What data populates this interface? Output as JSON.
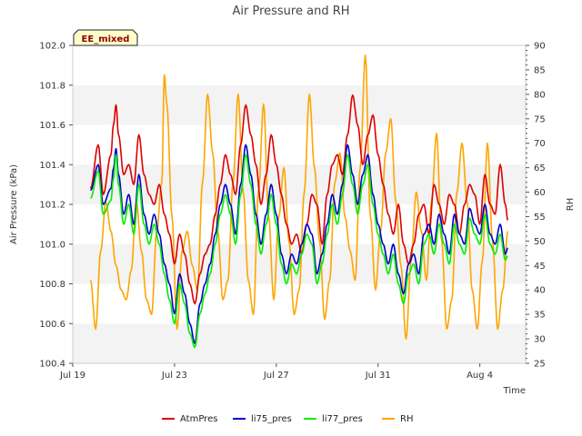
{
  "chart_data": {
    "type": "line",
    "title": "Air Pressure and RH",
    "xlabel": "Time",
    "ylabel": "Air Pressure (kPa)",
    "y2label": "RH",
    "badge": "EE_mixed",
    "xlim": [
      0,
      17.8
    ],
    "ylim": [
      100.4,
      102.0
    ],
    "y2lim": [
      25,
      90
    ],
    "x_ticks": [
      {
        "value": 0,
        "label": "Jul 19"
      },
      {
        "value": 4,
        "label": "Jul 23"
      },
      {
        "value": 8,
        "label": "Jul 27"
      },
      {
        "value": 12,
        "label": "Jul 31"
      },
      {
        "value": 16,
        "label": "Aug 4"
      }
    ],
    "y_ticks": [
      "100.4",
      "100.6",
      "100.8",
      "101.0",
      "101.2",
      "101.4",
      "101.6",
      "101.8",
      "102.0"
    ],
    "y2_ticks": [
      "25",
      "30",
      "35",
      "40",
      "45",
      "50",
      "55",
      "60",
      "65",
      "70",
      "75",
      "80",
      "85",
      "90"
    ],
    "legend_position": "bottom",
    "series": [
      {
        "name": "AtmPres",
        "color": "#dd0000",
        "axis": "left",
        "x": [
          0.7,
          1.0,
          1.2,
          1.5,
          1.6,
          1.7,
          1.8,
          2.0,
          2.2,
          2.4,
          2.6,
          2.8,
          3.0,
          3.2,
          3.4,
          3.6,
          3.8,
          4.0,
          4.2,
          4.4,
          4.6,
          4.8,
          5.0,
          5.2,
          5.4,
          5.6,
          5.8,
          6.0,
          6.2,
          6.4,
          6.6,
          6.8,
          7.0,
          7.2,
          7.4,
          7.6,
          7.8,
          8.0,
          8.2,
          8.4,
          8.6,
          8.8,
          9.0,
          9.2,
          9.4,
          9.6,
          9.8,
          10.0,
          10.2,
          10.4,
          10.6,
          10.8,
          11.0,
          11.2,
          11.4,
          11.6,
          11.8,
          12.0,
          12.2,
          12.4,
          12.6,
          12.8,
          13.0,
          13.2,
          13.4,
          13.6,
          13.8,
          14.0,
          14.2,
          14.4,
          14.6,
          14.8,
          15.0,
          15.2,
          15.4,
          15.6,
          15.8,
          16.0,
          16.2,
          16.4,
          16.6,
          16.8,
          17.0,
          17.1
        ],
        "y": [
          101.28,
          101.5,
          101.25,
          101.45,
          101.6,
          101.7,
          101.55,
          101.35,
          101.4,
          101.3,
          101.55,
          101.35,
          101.25,
          101.2,
          101.3,
          101.15,
          101.05,
          100.9,
          101.05,
          100.95,
          100.8,
          100.7,
          100.85,
          100.95,
          101.0,
          101.15,
          101.3,
          101.45,
          101.35,
          101.25,
          101.5,
          101.7,
          101.55,
          101.4,
          101.2,
          101.35,
          101.55,
          101.4,
          101.25,
          101.1,
          101.0,
          101.05,
          100.95,
          101.1,
          101.25,
          101.2,
          101.0,
          101.25,
          101.4,
          101.45,
          101.35,
          101.55,
          101.75,
          101.6,
          101.4,
          101.55,
          101.65,
          101.45,
          101.3,
          101.15,
          101.05,
          101.2,
          101.0,
          100.9,
          101.0,
          101.15,
          101.2,
          101.05,
          101.3,
          101.2,
          101.1,
          101.25,
          101.2,
          101.05,
          101.2,
          101.3,
          101.25,
          101.1,
          101.35,
          101.2,
          101.15,
          101.4,
          101.2,
          101.12
        ]
      },
      {
        "name": "li75_pres",
        "color": "#0000cc",
        "axis": "left",
        "x": [
          0.7,
          1.0,
          1.2,
          1.5,
          1.6,
          1.7,
          1.8,
          2.0,
          2.2,
          2.4,
          2.6,
          2.8,
          3.0,
          3.2,
          3.4,
          3.6,
          3.8,
          4.0,
          4.2,
          4.4,
          4.6,
          4.8,
          5.0,
          5.2,
          5.4,
          5.6,
          5.8,
          6.0,
          6.2,
          6.4,
          6.6,
          6.8,
          7.0,
          7.2,
          7.4,
          7.6,
          7.8,
          8.0,
          8.2,
          8.4,
          8.6,
          8.8,
          9.0,
          9.2,
          9.4,
          9.6,
          9.8,
          10.0,
          10.2,
          10.4,
          10.6,
          10.8,
          11.0,
          11.2,
          11.4,
          11.6,
          11.8,
          12.0,
          12.2,
          12.4,
          12.6,
          12.8,
          13.0,
          13.2,
          13.4,
          13.6,
          13.8,
          14.0,
          14.2,
          14.4,
          14.6,
          14.8,
          15.0,
          15.2,
          15.4,
          15.6,
          15.8,
          16.0,
          16.2,
          16.4,
          16.6,
          16.8,
          17.0,
          17.1
        ],
        "y": [
          101.27,
          101.4,
          101.2,
          101.28,
          101.38,
          101.48,
          101.35,
          101.15,
          101.25,
          101.1,
          101.35,
          101.15,
          101.05,
          101.15,
          101.05,
          100.9,
          100.8,
          100.65,
          100.85,
          100.75,
          100.6,
          100.5,
          100.7,
          100.8,
          100.9,
          101.05,
          101.2,
          101.3,
          101.2,
          101.05,
          101.3,
          101.5,
          101.35,
          101.15,
          101.0,
          101.15,
          101.3,
          101.15,
          100.95,
          100.85,
          100.95,
          100.9,
          101.0,
          101.1,
          101.05,
          100.85,
          100.95,
          101.1,
          101.25,
          101.15,
          101.3,
          101.5,
          101.35,
          101.2,
          101.35,
          101.45,
          101.25,
          101.1,
          101.0,
          100.9,
          101.0,
          100.85,
          100.75,
          100.9,
          100.95,
          100.85,
          101.05,
          101.1,
          101.0,
          101.15,
          101.05,
          100.95,
          101.15,
          101.05,
          101.0,
          101.18,
          101.1,
          101.05,
          101.2,
          101.05,
          101.0,
          101.1,
          100.95,
          100.98
        ]
      },
      {
        "name": "li77_pres",
        "color": "#00ee00",
        "axis": "left",
        "x": [
          0.7,
          1.0,
          1.2,
          1.5,
          1.6,
          1.7,
          1.8,
          2.0,
          2.2,
          2.4,
          2.6,
          2.8,
          3.0,
          3.2,
          3.4,
          3.6,
          3.8,
          4.0,
          4.2,
          4.4,
          4.6,
          4.8,
          5.0,
          5.2,
          5.4,
          5.6,
          5.8,
          6.0,
          6.2,
          6.4,
          6.6,
          6.8,
          7.0,
          7.2,
          7.4,
          7.6,
          7.8,
          8.0,
          8.2,
          8.4,
          8.6,
          8.8,
          9.0,
          9.2,
          9.4,
          9.6,
          9.8,
          10.0,
          10.2,
          10.4,
          10.6,
          10.8,
          11.0,
          11.2,
          11.4,
          11.6,
          11.8,
          12.0,
          12.2,
          12.4,
          12.6,
          12.8,
          13.0,
          13.2,
          13.4,
          13.6,
          13.8,
          14.0,
          14.2,
          14.4,
          14.6,
          14.8,
          15.0,
          15.2,
          15.4,
          15.6,
          15.8,
          16.0,
          16.2,
          16.4,
          16.6,
          16.8,
          17.0,
          17.1
        ],
        "y": [
          101.23,
          101.37,
          101.15,
          101.22,
          101.33,
          101.45,
          101.3,
          101.1,
          101.2,
          101.05,
          101.3,
          101.1,
          101.0,
          101.1,
          101.0,
          100.85,
          100.72,
          100.6,
          100.8,
          100.7,
          100.55,
          100.48,
          100.65,
          100.75,
          100.85,
          101.0,
          101.15,
          101.25,
          101.15,
          101.0,
          101.25,
          101.45,
          101.3,
          101.1,
          100.95,
          101.1,
          101.25,
          101.1,
          100.9,
          100.8,
          100.9,
          100.85,
          100.95,
          101.05,
          101.0,
          100.8,
          100.9,
          101.05,
          101.2,
          101.1,
          101.25,
          101.45,
          101.3,
          101.15,
          101.3,
          101.4,
          101.2,
          101.05,
          100.95,
          100.85,
          100.95,
          100.8,
          100.7,
          100.85,
          100.9,
          100.8,
          101.0,
          101.05,
          100.95,
          101.1,
          101.0,
          100.9,
          101.1,
          101.0,
          100.95,
          101.13,
          101.05,
          101.0,
          101.15,
          101.0,
          100.95,
          101.05,
          100.92,
          100.94
        ]
      },
      {
        "name": "RH",
        "color": "#ffa500",
        "axis": "right",
        "x": [
          0.7,
          0.9,
          1.1,
          1.3,
          1.5,
          1.7,
          1.9,
          2.1,
          2.3,
          2.5,
          2.7,
          2.9,
          3.1,
          3.3,
          3.5,
          3.6,
          3.7,
          3.9,
          4.1,
          4.3,
          4.5,
          4.7,
          4.9,
          5.1,
          5.3,
          5.5,
          5.7,
          5.9,
          6.1,
          6.3,
          6.5,
          6.7,
          6.9,
          7.1,
          7.3,
          7.5,
          7.7,
          7.9,
          8.1,
          8.3,
          8.5,
          8.7,
          8.9,
          9.1,
          9.3,
          9.5,
          9.7,
          9.9,
          10.1,
          10.3,
          10.5,
          10.7,
          10.9,
          11.1,
          11.3,
          11.5,
          11.7,
          11.9,
          12.1,
          12.3,
          12.5,
          12.7,
          12.9,
          13.1,
          13.3,
          13.5,
          13.7,
          13.9,
          14.1,
          14.3,
          14.5,
          14.7,
          14.9,
          15.1,
          15.3,
          15.5,
          15.7,
          15.9,
          16.1,
          16.3,
          16.5,
          16.7,
          16.9,
          17.1
        ],
        "y": [
          42,
          32,
          48,
          58,
          52,
          45,
          40,
          38,
          44,
          58,
          48,
          38,
          35,
          52,
          62,
          84,
          78,
          55,
          32,
          48,
          52,
          45,
          40,
          62,
          80,
          68,
          52,
          38,
          42,
          62,
          80,
          60,
          42,
          35,
          60,
          78,
          55,
          38,
          55,
          65,
          50,
          35,
          40,
          60,
          80,
          65,
          50,
          34,
          42,
          62,
          68,
          55,
          48,
          42,
          65,
          88,
          55,
          40,
          52,
          68,
          75,
          58,
          45,
          30,
          46,
          60,
          52,
          42,
          58,
          72,
          50,
          32,
          38,
          60,
          70,
          58,
          40,
          32,
          46,
          70,
          50,
          32,
          40,
          52
        ]
      }
    ]
  },
  "legend": {
    "items": [
      {
        "label": "AtmPres",
        "color": "#dd0000"
      },
      {
        "label": "li75_pres",
        "color": "#0000cc"
      },
      {
        "label": "li77_pres",
        "color": "#00ee00"
      },
      {
        "label": "RH",
        "color": "#ffa500"
      }
    ]
  }
}
